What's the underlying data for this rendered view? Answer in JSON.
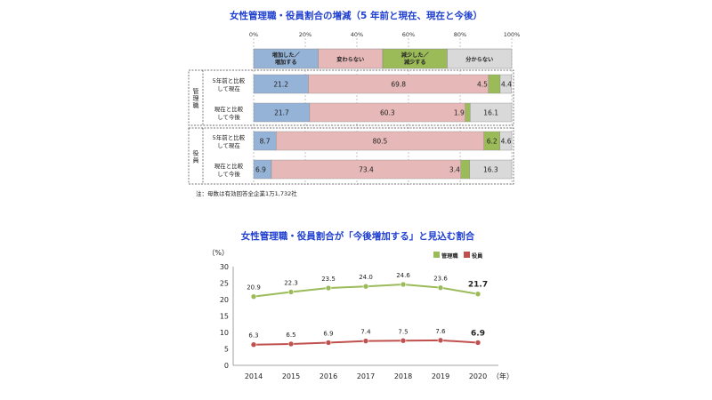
{
  "chart_data": [
    {
      "type": "bar",
      "stacked": true,
      "orientation": "horizontal",
      "title": "女性管理職・役員割合の増減（5 年前と現在、現在と今後）",
      "x_ticks": [
        "0%",
        "20%",
        "40%",
        "60%",
        "80%",
        "100%"
      ],
      "xlim": [
        0,
        100
      ],
      "legend_placement": "top",
      "legend": [
        {
          "label": "増加した／\n増加する",
          "color": "#95b3d7"
        },
        {
          "label": "変わらない",
          "color": "#e6b9b8"
        },
        {
          "label": "減少した／\n減少する",
          "color": "#9bbb59"
        },
        {
          "label": "分からない",
          "color": "#d9d9d9"
        }
      ],
      "groups": [
        {
          "name": "管理職",
          "rows": [
            {
              "label": "5年前と比較\nして現在",
              "values": [
                21.2,
                69.8,
                4.5,
                4.4
              ],
              "labels": [
                "21.2",
                "69.8",
                "4.5",
                "4.4"
              ]
            },
            {
              "label": "現在と比較\nして今後",
              "values": [
                21.7,
                60.3,
                1.9,
                16.1
              ],
              "labels": [
                "21.7",
                "60.3",
                "1.9",
                "16.1"
              ]
            }
          ]
        },
        {
          "name": "役員",
          "rows": [
            {
              "label": "5年前と比較\nして現在",
              "values": [
                8.7,
                80.5,
                6.2,
                4.6
              ],
              "labels": [
                "8.7",
                "80.5",
                "6.2",
                "4.6"
              ]
            },
            {
              "label": "現在と比較\nして今後",
              "values": [
                6.9,
                73.4,
                3.4,
                16.3
              ],
              "labels": [
                "6.9",
                "73.4",
                "3.4",
                "16.3"
              ]
            }
          ]
        }
      ],
      "note": "注：母数は有効回答全企業1万1,732社"
    },
    {
      "type": "line",
      "title": "女性管理職・役員割合が「今後増加する」と見込む割合",
      "ylabel": "（%）",
      "xlabel": "（年）",
      "ylim": [
        0,
        30
      ],
      "y_ticks": [
        0,
        5,
        10,
        15,
        20,
        25,
        30
      ],
      "x": [
        "2014",
        "2015",
        "2016",
        "2017",
        "2018",
        "2019",
        "2020"
      ],
      "legend_placement": "top-right",
      "series": [
        {
          "name": "管理職",
          "color": "#9bbb59",
          "values": [
            20.9,
            22.3,
            23.5,
            24.0,
            24.6,
            23.6,
            21.7
          ]
        },
        {
          "name": "役員",
          "color": "#c0504d",
          "values": [
            6.3,
            6.5,
            6.9,
            7.4,
            7.5,
            7.6,
            6.9
          ]
        }
      ]
    }
  ]
}
